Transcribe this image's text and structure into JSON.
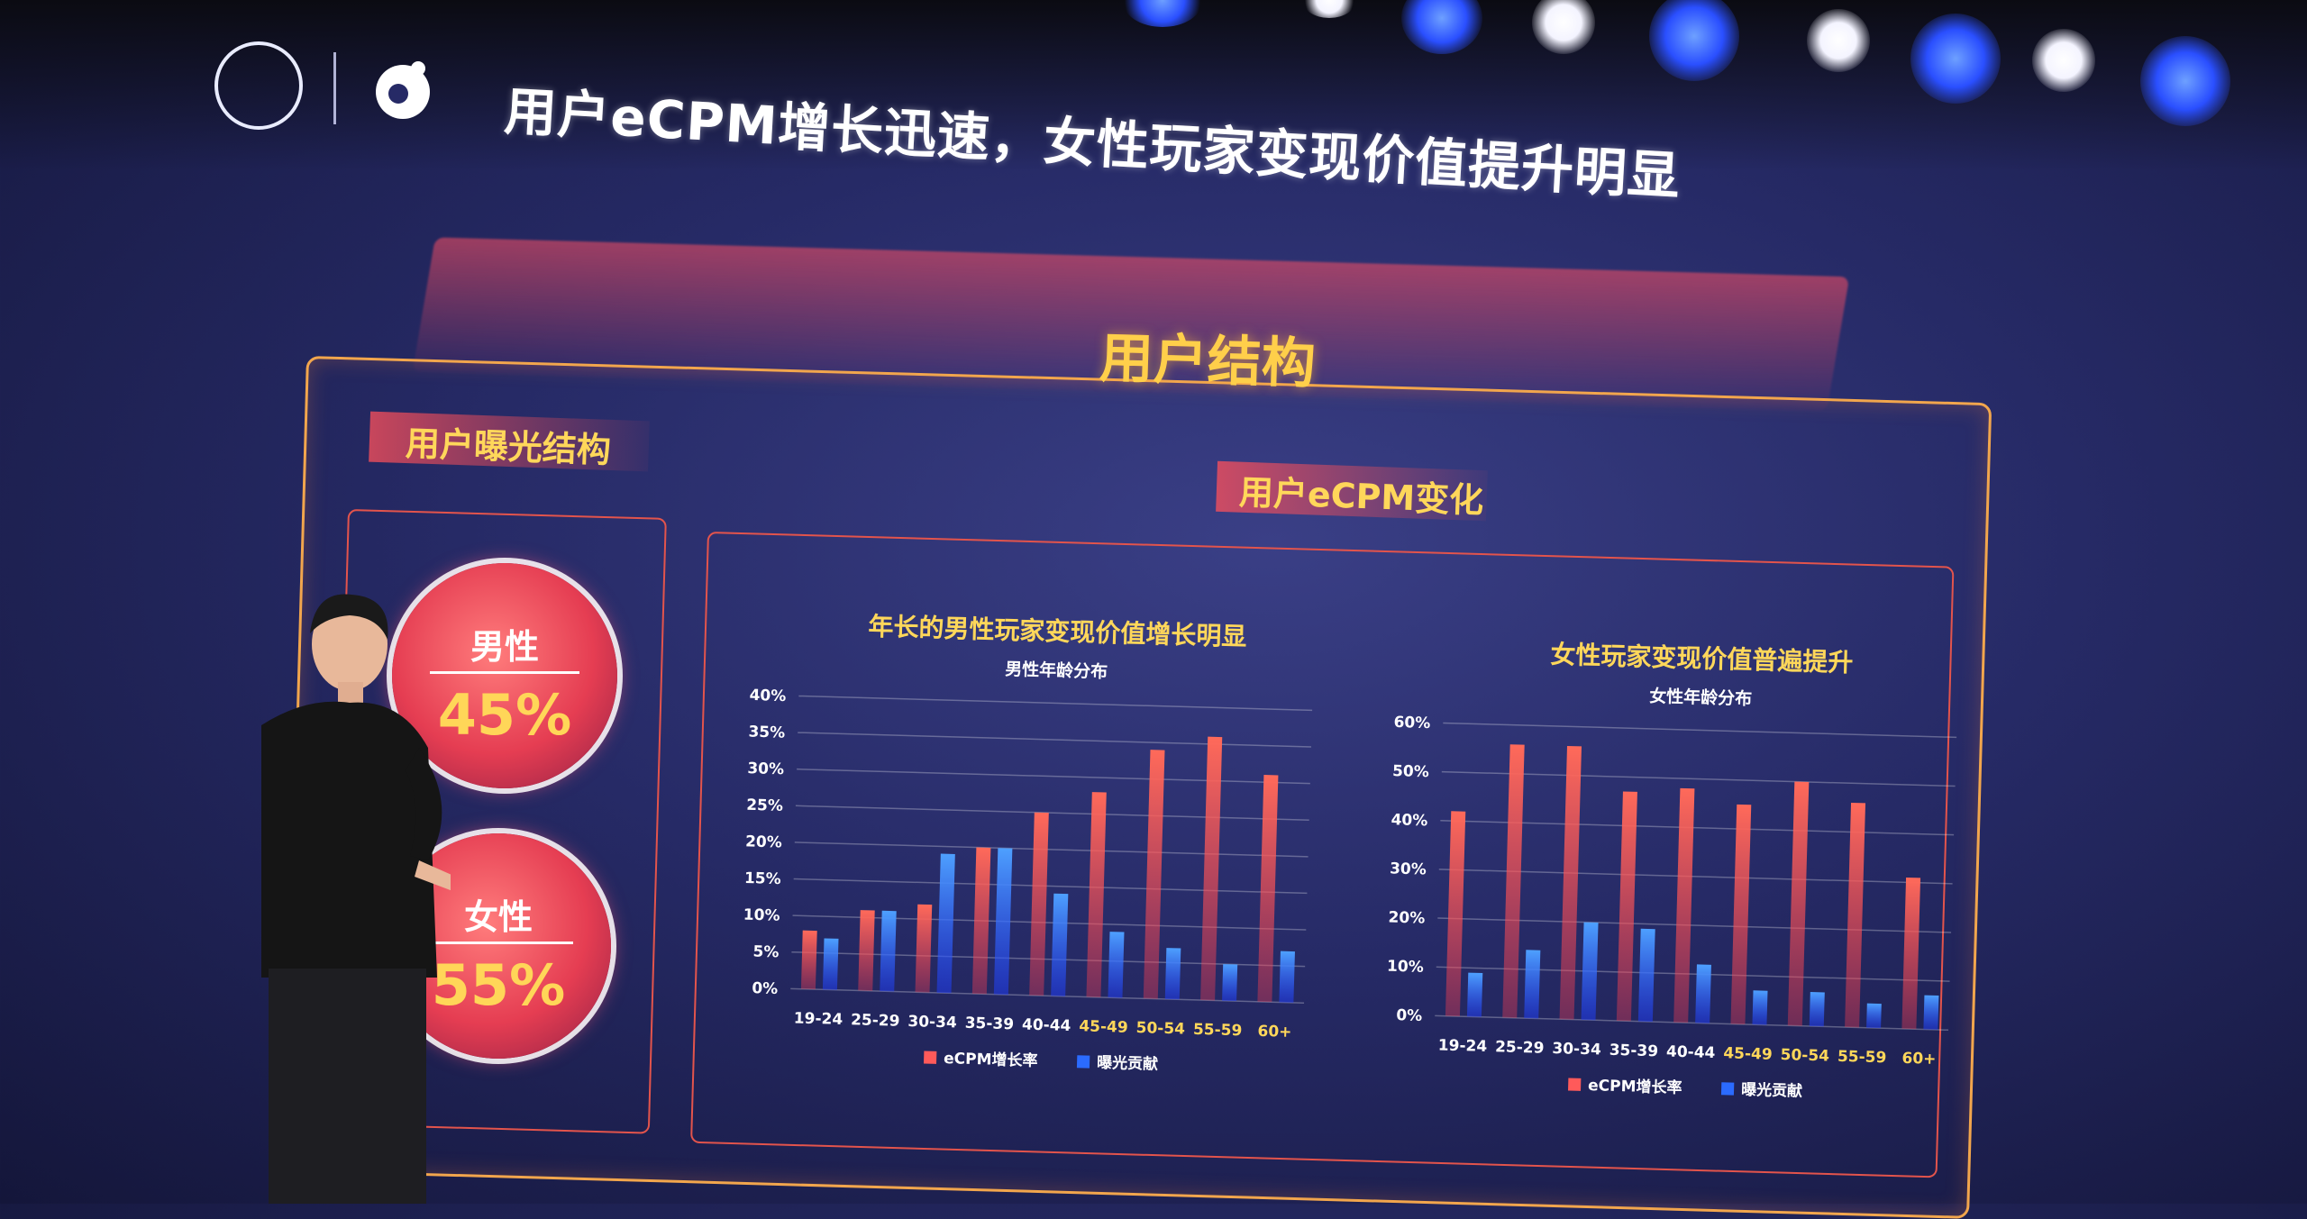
{
  "slide": {
    "title": "用户eCPM增长迅速，女性玩家变现价值提升明显",
    "section_title": "用户结构",
    "exposure_title": "用户曝光结构",
    "ecpm_title": "用户eCPM变化",
    "male": {
      "label": "男性",
      "value": "45%"
    },
    "female": {
      "label": "女性",
      "value": "55%"
    }
  },
  "colors": {
    "accent": "#ffd75a",
    "frame": "#f2a64d",
    "red_series": "#ff5a5a",
    "blue_series": "#2b6bff"
  },
  "chart_data": [
    {
      "type": "bar",
      "title": "年长的男性玩家变现价值增长明显",
      "subtitle": "男性年龄分布",
      "categories": [
        "19-24",
        "25-29",
        "30-34",
        "35-39",
        "40-44",
        "45-49",
        "50-54",
        "55-59",
        "60+"
      ],
      "yticks": [
        "0%",
        "5%",
        "10%",
        "15%",
        "20%",
        "25%",
        "30%",
        "35%",
        "40%"
      ],
      "ylim": [
        0,
        40
      ],
      "series": [
        {
          "name": "eCPM增长率",
          "values": [
            8,
            11,
            12,
            20,
            25,
            28,
            34,
            36,
            31
          ]
        },
        {
          "name": "曝光贡献",
          "values": [
            7,
            11,
            19,
            20,
            14,
            9,
            7,
            5,
            7
          ]
        }
      ],
      "legend": "bottom"
    },
    {
      "type": "bar",
      "title": "女性玩家变现价值普遍提升",
      "subtitle": "女性年龄分布",
      "categories": [
        "19-24",
        "25-29",
        "30-34",
        "35-39",
        "40-44",
        "45-49",
        "50-54",
        "55-59",
        "60+"
      ],
      "yticks": [
        "0%",
        "10%",
        "20%",
        "30%",
        "40%",
        "50%",
        "60%"
      ],
      "ylim": [
        0,
        60
      ],
      "series": [
        {
          "name": "eCPM增长率",
          "values": [
            42,
            56,
            56,
            47,
            48,
            45,
            50,
            46,
            31
          ]
        },
        {
          "name": "曝光贡献",
          "values": [
            9,
            14,
            20,
            19,
            12,
            7,
            7,
            5,
            7
          ]
        }
      ],
      "legend": "bottom"
    }
  ]
}
